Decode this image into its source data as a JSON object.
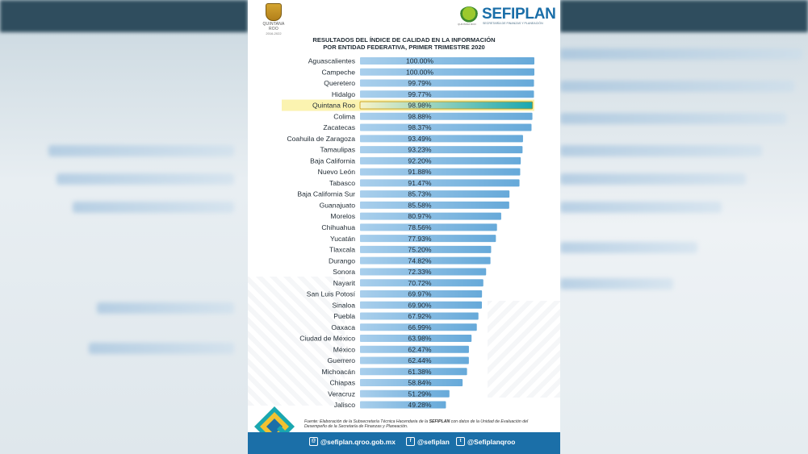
{
  "header": {
    "left_logo_state": "QUINTANA ROO",
    "left_logo_years": "2016-2022",
    "brand_name": "SEFIPLAN",
    "brand_subtitle": "SECRETARÍA DE FINANZAS Y PLANEACIÓN",
    "tree_caption": "QUINTANA ROO"
  },
  "chart_data": {
    "type": "bar",
    "orientation": "horizontal",
    "title": "RESULTADOS DEL ÍNDICE DE CALIDAD EN LA INFORMACIÓN",
    "subtitle": "POR ENTIDAD FEDERATIVA, PRIMER TRIMESTRE 2020",
    "xlim": [
      0,
      100
    ],
    "highlight": "Quintana Roo",
    "colors": {
      "bar": "#66a9d9",
      "bar_light": "#a9cfec",
      "highlight_bg": "#fbf3b0",
      "highlight_bar": "#1aa7b0"
    },
    "categories": [
      "Aguascalientes",
      "Campeche",
      "Queretero",
      "Hidalgo",
      "Quintana Roo",
      "Colima",
      "Zacatecas",
      "Coahuila de Zaragoza",
      "Tamaulipas",
      "Baja California",
      "Nuevo León",
      "Tabasco",
      "Baja California Sur",
      "Guanajuato",
      "Morelos",
      "Chihuahua",
      "Yucatán",
      "Tlaxcala",
      "Durango",
      "Sonora",
      "Nayarit",
      "San Luis Potosí",
      "Sinaloa",
      "Puebla",
      "Oaxaca",
      "Ciudad de México",
      "México",
      "Guerrero",
      "Michoacán",
      "Chiapas",
      "Veracruz",
      "Jalisco"
    ],
    "values": [
      100.0,
      100.0,
      99.79,
      99.77,
      98.98,
      98.88,
      98.37,
      93.49,
      93.23,
      92.2,
      91.88,
      91.47,
      85.73,
      85.58,
      80.97,
      78.56,
      77.93,
      75.2,
      74.82,
      72.33,
      70.72,
      69.97,
      69.9,
      67.92,
      66.99,
      63.98,
      62.47,
      62.44,
      61.38,
      58.84,
      51.29,
      49.28
    ],
    "value_labels": [
      "100.00%",
      "100.00%",
      "99.79%",
      "99.77%",
      "98.98%",
      "98.88%",
      "98.37%",
      "93.49%",
      "93.23%",
      "92.20%",
      "91.88%",
      "91.47%",
      "85.73%",
      "85.58%",
      "80.97%",
      "78.56%",
      "77.93%",
      "75.20%",
      "74.82%",
      "72.33%",
      "70.72%",
      "69.97%",
      "69.90%",
      "67.92%",
      "66.99%",
      "63.98%",
      "62.47%",
      "62.44%",
      "61.38%",
      "58.84%",
      "51.29%",
      "49.28%"
    ]
  },
  "footnote": {
    "prefix": "Fuente: Elaboración de la Subsecretaría Técnica Hacendaria de la ",
    "bold": "SEFIPLAN",
    "suffix": " con datos de la Unidad de Evaluación del Desempeño de la Secretaría de Finanzas y Planeación."
  },
  "footer": {
    "web": "@sefiplan.qroo.gob.mx",
    "facebook": "@sefiplan",
    "twitter": "@Sefiplanqroo",
    "color": "#1b6fa8"
  }
}
